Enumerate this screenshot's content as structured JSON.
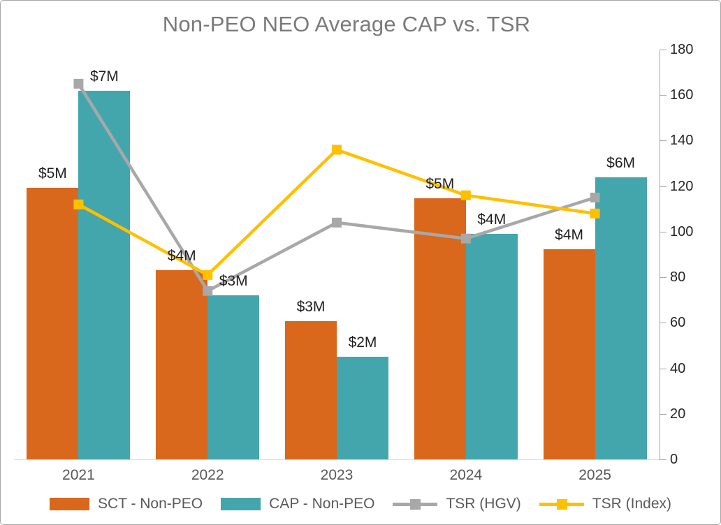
{
  "title": "Non-PEO NEO Average CAP vs. TSR",
  "colors": {
    "sct_bar": "#D9671C",
    "cap_bar": "#44A6AD",
    "tsr_hgv_line": "#A8A8A8",
    "tsr_index_line": "#FFC000",
    "title_text": "#7A7A7A",
    "tick_text": "#262626",
    "category_text": "#595959",
    "axis_line": "#A6A6A6",
    "baseline": "#DCDCDC",
    "data_label_text": "#1F1F1F"
  },
  "chart_data": {
    "type": "bar",
    "subtype": "bar-line-combo",
    "title": "Non-PEO NEO Average CAP vs. TSR",
    "xlabel": "",
    "ylabel": "",
    "categories": [
      "2021",
      "2022",
      "2023",
      "2024",
      "2025"
    ],
    "series": [
      {
        "name": "SCT - Non-PEO",
        "type": "bar",
        "color": "#D9671C",
        "axis": "left-hidden-millions-usd",
        "values": [
          5.3,
          3.7,
          2.7,
          5.1,
          4.1
        ],
        "data_labels": [
          "$5M",
          "$4M",
          "$3M",
          "$5M",
          "$4M"
        ]
      },
      {
        "name": "CAP - Non-PEO",
        "type": "bar",
        "color": "#44A6AD",
        "axis": "left-hidden-millions-usd",
        "values": [
          7.2,
          3.2,
          2.0,
          4.4,
          5.5
        ],
        "data_labels": [
          "$7M",
          "$3M",
          "$2M",
          "$4M",
          "$6M"
        ]
      },
      {
        "name": "TSR (HGV)",
        "type": "line",
        "marker": "square",
        "color": "#A8A8A8",
        "axis": "right",
        "values": [
          165,
          74,
          104,
          97,
          115
        ]
      },
      {
        "name": "TSR (Index)",
        "type": "line",
        "marker": "square",
        "color": "#FFC000",
        "axis": "right",
        "values": [
          112,
          81,
          136,
          116,
          108
        ]
      }
    ],
    "right_axis": {
      "min": 0,
      "max": 180,
      "step": 20,
      "tick_labels": [
        "0",
        "20",
        "40",
        "60",
        "80",
        "100",
        "120",
        "140",
        "160",
        "180"
      ]
    },
    "hidden_left_axis": {
      "min": 0,
      "max": 8
    },
    "legend_position": "bottom",
    "grid": false
  }
}
